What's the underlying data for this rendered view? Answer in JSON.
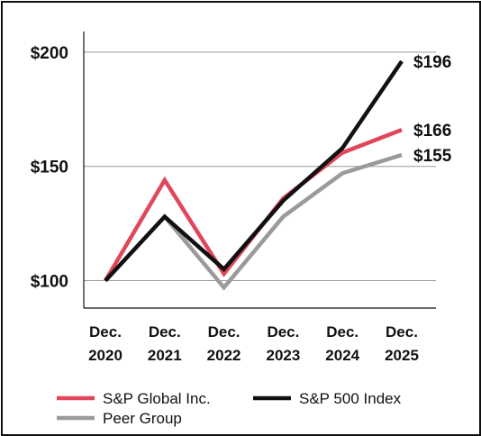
{
  "chart_data": {
    "type": "line",
    "title": "",
    "xlabel": "",
    "ylabel": "",
    "categories": [
      [
        "Dec.",
        "2020"
      ],
      [
        "Dec.",
        "2021"
      ],
      [
        "Dec.",
        "2022"
      ],
      [
        "Dec.",
        "2023"
      ],
      [
        "Dec.",
        "2024"
      ],
      [
        "Dec.",
        "2025"
      ]
    ],
    "ylim": [
      88,
      209
    ],
    "yticks": [
      {
        "value": 100,
        "label": "$100"
      },
      {
        "value": 150,
        "label": "$150"
      },
      {
        "value": 200,
        "label": "$200"
      }
    ],
    "grid": "horizontal",
    "legend_position": "bottom",
    "series": [
      {
        "name": "S&P Global Inc.",
        "color": "#e0475b",
        "values": [
          100,
          144,
          103,
          136,
          156,
          166
        ],
        "end_label": "$166"
      },
      {
        "name": "S&P 500 Index",
        "color": "#111111",
        "values": [
          100,
          128,
          105,
          135,
          158,
          196
        ],
        "end_label": "$196"
      },
      {
        "name": "Peer Group",
        "color": "#9a9a9a",
        "values": [
          100,
          128,
          97,
          128,
          147,
          155
        ],
        "end_label": "$155"
      }
    ]
  }
}
